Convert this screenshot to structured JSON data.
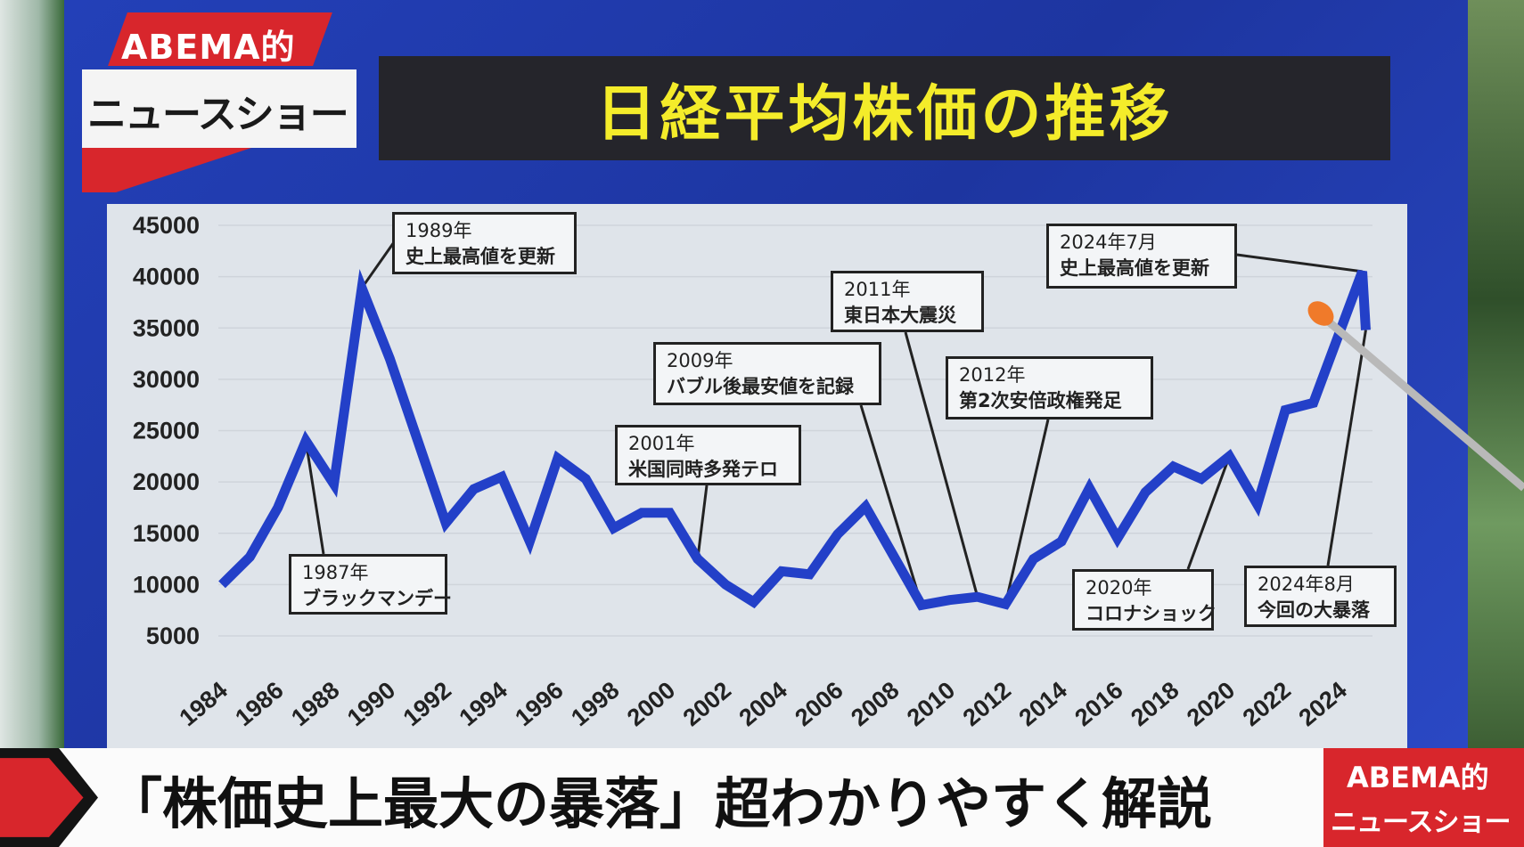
{
  "logo": {
    "top": "ABEMA的",
    "bottom": "ニュースショー"
  },
  "title": "日経平均株価の推移",
  "ticker": {
    "headline": "「株価史上最大の暴落」超わかりやすく解説",
    "logo_top": "ABEMA的",
    "logo_bottom": "ニュースショー"
  },
  "colors": {
    "line": "#2340c8",
    "title_text": "#f4ec2a",
    "title_bar": "#25252b",
    "brand_red": "#d8262c",
    "board": "#2340b8",
    "pointer_tip": "#f07a2a"
  },
  "chart_data": {
    "type": "line",
    "title": "日経平均株価の推移",
    "xlabel": "",
    "ylabel": "",
    "ylim": [
      5000,
      45000
    ],
    "yticks": [
      "45000",
      "40000",
      "35000",
      "30000",
      "25000",
      "20000",
      "15000",
      "10000",
      "5000"
    ],
    "xticks": [
      "1984",
      "1986",
      "1988",
      "1990",
      "1992",
      "1994",
      "1996",
      "1998",
      "2000",
      "2002",
      "2004",
      "2006",
      "2008",
      "2010",
      "2012",
      "2014",
      "2016",
      "2018",
      "2020",
      "2022",
      "2024"
    ],
    "grid": true,
    "x": [
      1984,
      1985,
      1986,
      1987,
      1988,
      1989,
      1990,
      1991,
      1992,
      1993,
      1994,
      1995,
      1996,
      1997,
      1998,
      1999,
      2000,
      2001,
      2002,
      2003,
      2004,
      2005,
      2006,
      2007,
      2008,
      2009,
      2010,
      2011,
      2012,
      2013,
      2014,
      2015,
      2016,
      2017,
      2018,
      2019,
      2020,
      2021,
      2022,
      2023,
      "2024-07",
      "2024-08"
    ],
    "values": [
      10000,
      12700,
      17500,
      24000,
      19800,
      38900,
      32000,
      24000,
      16000,
      19300,
      20500,
      14200,
      22300,
      20300,
      15500,
      17000,
      17000,
      12500,
      10000,
      8300,
      11300,
      11000,
      14900,
      17600,
      12800,
      8000,
      8500,
      8800,
      8100,
      12500,
      14200,
      19400,
      14500,
      19000,
      21500,
      20300,
      22500,
      17800,
      27000,
      27700,
      40500,
      34800
    ],
    "annotations": [
      {
        "year": "1989年",
        "text": "史上最高値を更新",
        "x": 1989
      },
      {
        "year": "1987年",
        "text": "ブラックマンデー",
        "x": 1987
      },
      {
        "year": "2001年",
        "text": "米国同時多発テロ",
        "x": 2001
      },
      {
        "year": "2009年",
        "text": "バブル後最安値を記録",
        "x": 2009
      },
      {
        "year": "2011年",
        "text": "東日本大震災",
        "x": 2011
      },
      {
        "year": "2012年",
        "text": "第2次安倍政権発足",
        "x": 2012
      },
      {
        "year": "2020年",
        "text": "コロナショック",
        "x": 2020
      },
      {
        "year": "2024年7月",
        "text": "史上最高値を更新",
        "x": "2024-07"
      },
      {
        "year": "2024年8月",
        "text": "今回の大暴落",
        "x": "2024-08"
      }
    ]
  }
}
